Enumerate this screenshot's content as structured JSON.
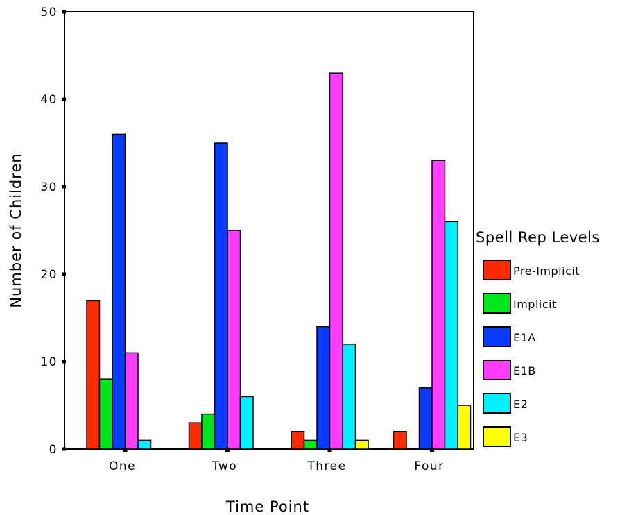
{
  "chart_data": {
    "type": "bar",
    "xlabel": "Time Point",
    "ylabel": "Number of Children",
    "categories": [
      "One",
      "Two",
      "Three",
      "Four"
    ],
    "ylim": [
      0,
      50
    ],
    "yticks": [
      "0",
      "10",
      "20",
      "30",
      "40",
      "50"
    ],
    "grid": false,
    "legend": {
      "title": "Spell Rep Levels",
      "placement": "right"
    },
    "series": [
      {
        "name": "Pre-Implicit",
        "color": "#ff2a00",
        "values": [
          17,
          3,
          2,
          2
        ]
      },
      {
        "name": "Implicit",
        "color": "#00e61e",
        "values": [
          8,
          4,
          1,
          0
        ]
      },
      {
        "name": "E1A",
        "color": "#0a3cff",
        "values": [
          36,
          35,
          14,
          7
        ]
      },
      {
        "name": "E1B",
        "color": "#ff3cff",
        "values": [
          11,
          25,
          43,
          33
        ]
      },
      {
        "name": "E2",
        "color": "#00f0ff",
        "values": [
          1,
          6,
          12,
          26
        ]
      },
      {
        "name": "E3",
        "color": "#ffff00",
        "values": [
          0,
          0,
          1,
          5
        ]
      }
    ]
  }
}
